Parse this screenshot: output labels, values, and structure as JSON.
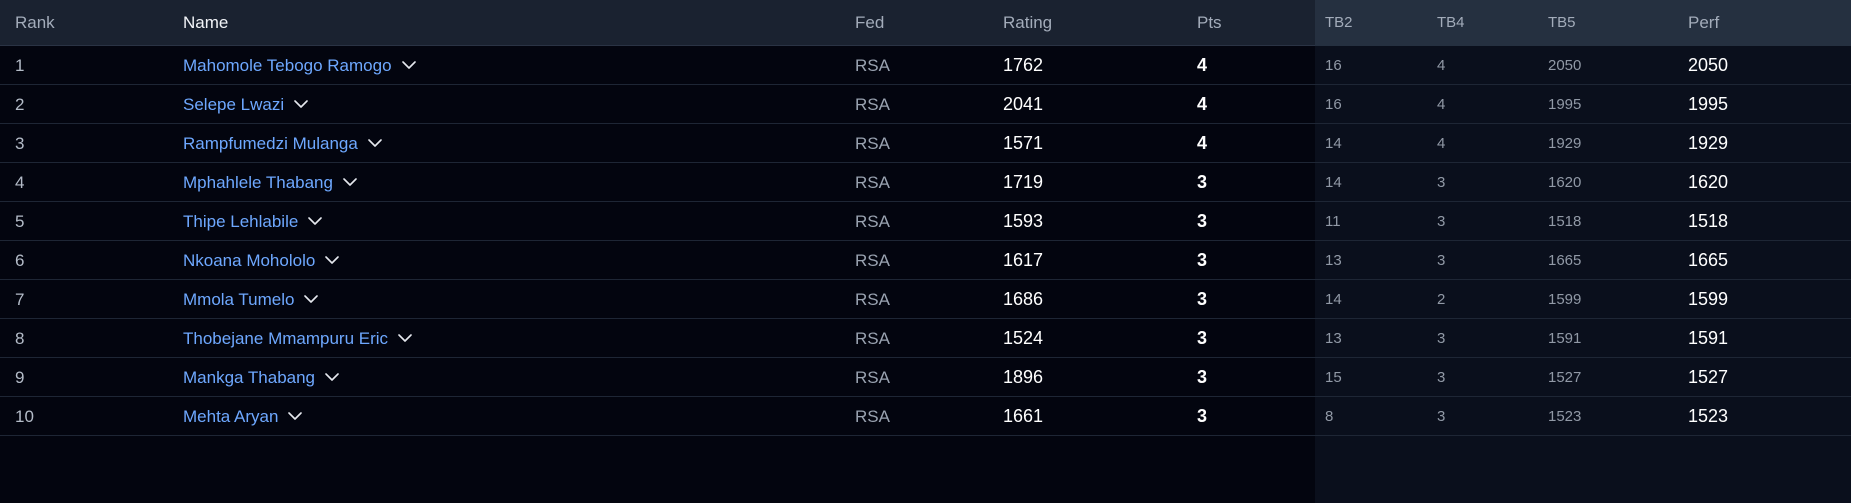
{
  "headers": {
    "rank": "Rank",
    "name": "Name",
    "fed": "Fed",
    "rating": "Rating",
    "pts": "Pts",
    "tb2": "TB2",
    "tb4": "TB4",
    "tb5": "TB5",
    "perf": "Perf"
  },
  "colors": {
    "background": "#03050f",
    "header": "#1a2230",
    "link": "#6ea8ff"
  },
  "icons": {
    "expand": "chevron-down-icon"
  },
  "rows": [
    {
      "rank": "1",
      "name": "Mahomole Tebogo Ramogo",
      "fed": "RSA",
      "rating": "1762",
      "pts": "4",
      "tb2": "16",
      "tb4": "4",
      "tb5": "2050",
      "perf": "2050"
    },
    {
      "rank": "2",
      "name": "Selepe Lwazi",
      "fed": "RSA",
      "rating": "2041",
      "pts": "4",
      "tb2": "16",
      "tb4": "4",
      "tb5": "1995",
      "perf": "1995"
    },
    {
      "rank": "3",
      "name": "Rampfumedzi Mulanga",
      "fed": "RSA",
      "rating": "1571",
      "pts": "4",
      "tb2": "14",
      "tb4": "4",
      "tb5": "1929",
      "perf": "1929"
    },
    {
      "rank": "4",
      "name": "Mphahlele Thabang",
      "fed": "RSA",
      "rating": "1719",
      "pts": "3",
      "tb2": "14",
      "tb4": "3",
      "tb5": "1620",
      "perf": "1620"
    },
    {
      "rank": "5",
      "name": "Thipe Lehlabile",
      "fed": "RSA",
      "rating": "1593",
      "pts": "3",
      "tb2": "11",
      "tb4": "3",
      "tb5": "1518",
      "perf": "1518"
    },
    {
      "rank": "6",
      "name": "Nkoana Moholol o",
      "fed": "RSA",
      "rating": "1617",
      "pts": "3",
      "tb2": "13",
      "tb4": "3",
      "tb5": "1665",
      "perf": "1665"
    },
    {
      "rank": "7",
      "name": "Mmola Tumelo",
      "fed": "RSA",
      "rating": "1686",
      "pts": "3",
      "tb2": "14",
      "tb4": "2",
      "tb5": "1599",
      "perf": "1599"
    },
    {
      "rank": "8",
      "name": "Thobejane Mmampuru Eric",
      "fed": "RSA",
      "rating": "1524",
      "pts": "3",
      "tb2": "13",
      "tb4": "3",
      "tb5": "1591",
      "perf": "1591"
    },
    {
      "rank": "9",
      "name": "Mankga Thabang",
      "fed": "RSA",
      "rating": "1896",
      "pts": "3",
      "tb2": "15",
      "tb4": "3",
      "tb5": "1527",
      "perf": "1527"
    },
    {
      "rank": "10",
      "name": "Mehta Aryan",
      "fed": "RSA",
      "rating": "1661",
      "pts": "3",
      "tb2": "8",
      "tb4": "3",
      "tb5": "1523",
      "perf": "1523"
    }
  ]
}
